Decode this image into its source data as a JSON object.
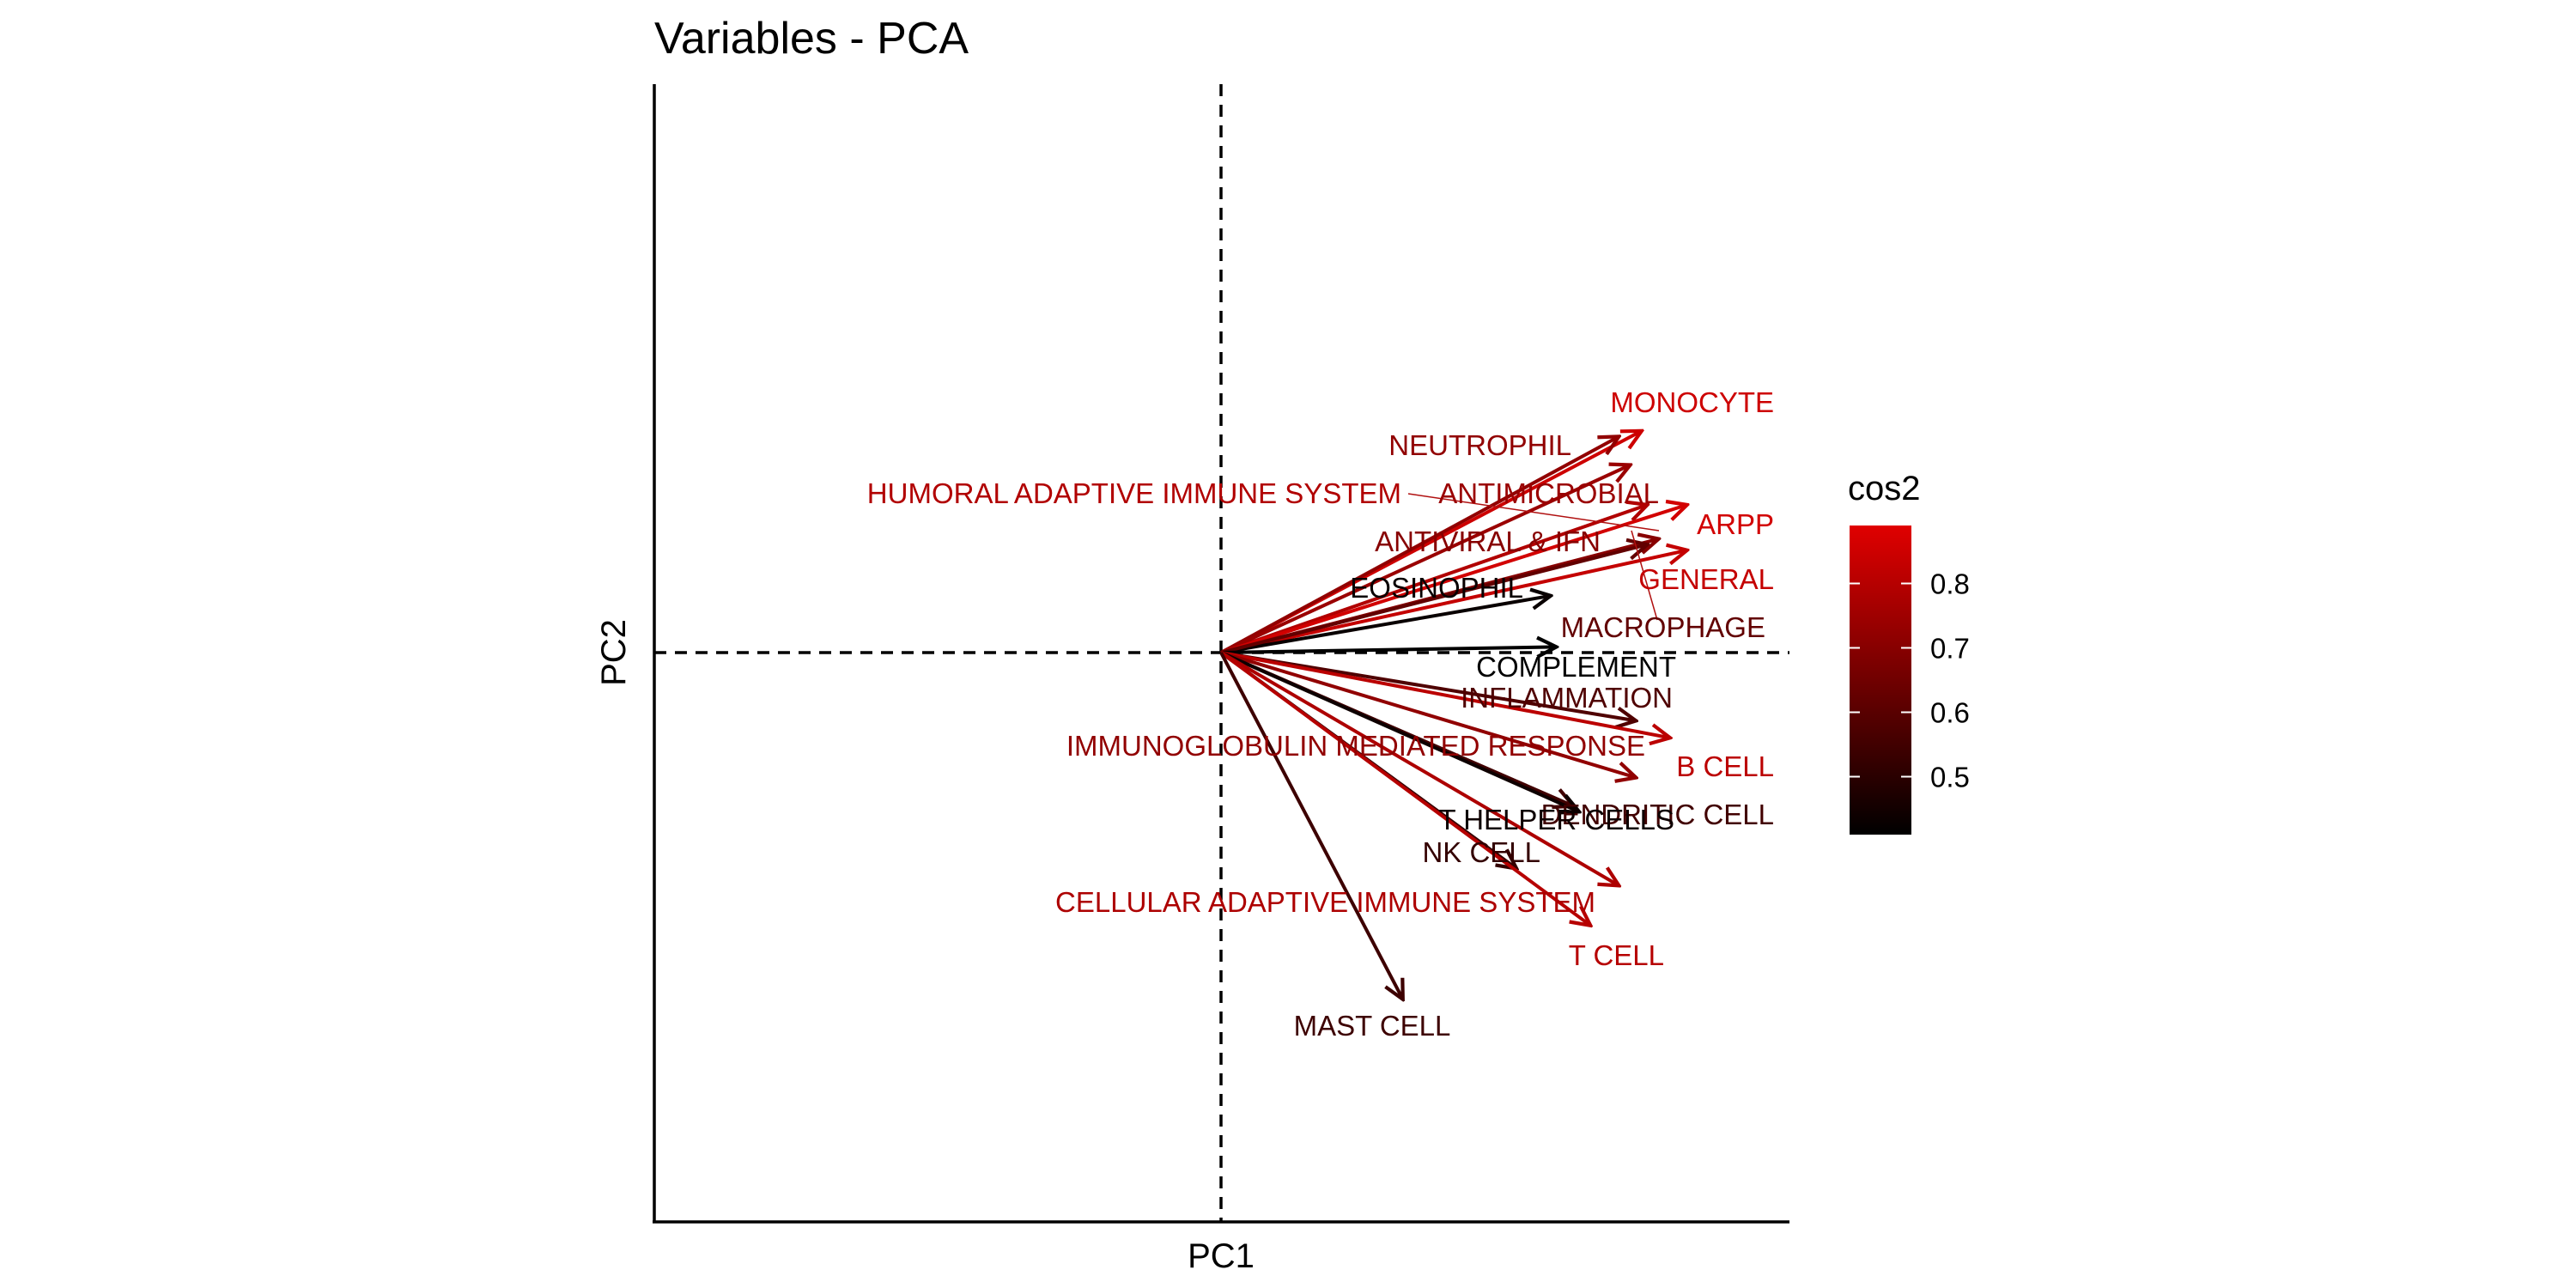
{
  "chart_data": {
    "type": "scatter",
    "subtype": "pca-variable-biplot",
    "title": "Variables - PCA",
    "xlabel": "PC1",
    "ylabel": "PC2",
    "xlim": [
      -1,
      1
    ],
    "ylim": [
      -1,
      1
    ],
    "grid": false,
    "reference_lines": [
      "x=0 dashed",
      "y=0 dashed"
    ],
    "color_variable": "cos2",
    "legend": {
      "title": "cos2",
      "position": "right",
      "ticks": [
        0.5,
        0.6,
        0.7,
        0.8
      ],
      "range": [
        0.41,
        0.89
      ],
      "gradient": [
        "#000000",
        "#E00000"
      ]
    },
    "variables": [
      {
        "name": "MONOCYTE",
        "x": 0.74,
        "y": 0.39,
        "cos2": 0.85
      },
      {
        "name": "NEUTROPHIL",
        "x": 0.7,
        "y": 0.38,
        "cos2": 0.72
      },
      {
        "name": "HUMORAL ADAPTIVE IMMUNE SYSTEM",
        "x": 0.75,
        "y": 0.26,
        "cos2": 0.79
      },
      {
        "name": "ANTIMICROBIAL",
        "x": 0.72,
        "y": 0.33,
        "cos2": 0.74
      },
      {
        "name": "ARPP",
        "x": 0.82,
        "y": 0.26,
        "cos2": 0.86
      },
      {
        "name": "ANTIVIRAL & IFN",
        "x": 0.77,
        "y": 0.2,
        "cos2": 0.7
      },
      {
        "name": "GENERAL",
        "x": 0.82,
        "y": 0.18,
        "cos2": 0.83
      },
      {
        "name": "EOSINOPHIL",
        "x": 0.58,
        "y": 0.1,
        "cos2": 0.43
      },
      {
        "name": "MACROPHAGE",
        "x": 0.75,
        "y": 0.19,
        "cos2": 0.62
      },
      {
        "name": "COMPLEMENT",
        "x": 0.59,
        "y": 0.01,
        "cos2": 0.41
      },
      {
        "name": "INFLAMMATION",
        "x": 0.73,
        "y": -0.12,
        "cos2": 0.58
      },
      {
        "name": "B CELL",
        "x": 0.79,
        "y": -0.15,
        "cos2": 0.81
      },
      {
        "name": "IMMUNOGLOBULIN MEDIATED RESPONSE",
        "x": 0.73,
        "y": -0.22,
        "cos2": 0.72
      },
      {
        "name": "DENDRITIC CELL",
        "x": 0.62,
        "y": -0.27,
        "cos2": 0.55
      },
      {
        "name": "T HELPER CELLS",
        "x": 0.63,
        "y": -0.28,
        "cos2": 0.44
      },
      {
        "name": "NK CELL",
        "x": 0.52,
        "y": -0.38,
        "cos2": 0.52
      },
      {
        "name": "CELLULAR ADAPTIVE IMMUNE SYSTEM",
        "x": 0.7,
        "y": -0.41,
        "cos2": 0.78
      },
      {
        "name": "T CELL",
        "x": 0.65,
        "y": -0.48,
        "cos2": 0.8
      },
      {
        "name": "MAST CELL",
        "x": 0.32,
        "y": -0.61,
        "cos2": 0.54
      }
    ]
  }
}
